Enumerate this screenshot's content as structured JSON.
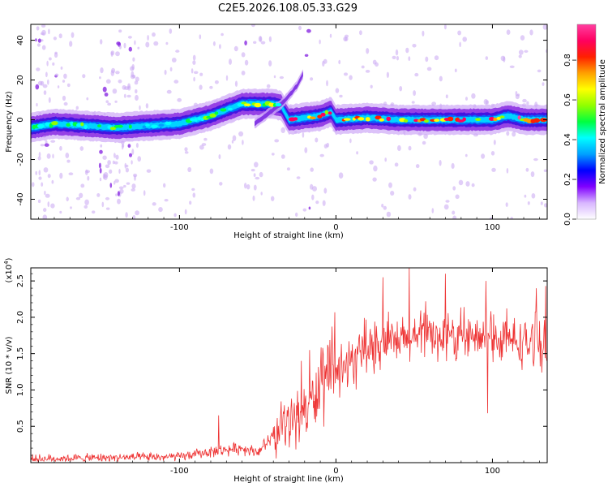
{
  "title": "C2E5.2026.108.05.33.G29",
  "chart_data": [
    {
      "type": "heatmap",
      "name": "spectrogram",
      "xlabel": "Height of straight line (km)",
      "ylabel": "Frequency (Hz)",
      "xlim": [
        -195,
        135
      ],
      "ylim": [
        -50,
        48
      ],
      "xticks": [
        -100,
        0,
        100
      ],
      "xtick_labels": [
        "-100",
        "0",
        "100"
      ],
      "yticks": [
        -40,
        -20,
        0,
        20,
        40
      ],
      "ytick_labels": [
        "-40",
        "-20",
        "0",
        "20",
        "40"
      ],
      "ridge": {
        "x": [
          -195,
          -180,
          -160,
          -140,
          -120,
          -100,
          -80,
          -60,
          -50,
          -40,
          -35,
          -30,
          -20,
          -10,
          -3,
          0,
          20,
          40,
          60,
          80,
          100,
          110,
          120,
          135
        ],
        "y": [
          -4,
          -2,
          -3,
          -4,
          -3,
          -2,
          2,
          8,
          8,
          8,
          7,
          0,
          1,
          2,
          4,
          0,
          1,
          0,
          0,
          0,
          0,
          2,
          0,
          0
        ]
      },
      "branch": {
        "x": [
          -52,
          -45,
          -40,
          -35,
          -30,
          -25,
          -21
        ],
        "y": [
          -2,
          2,
          5,
          8,
          12,
          17,
          23
        ]
      }
    },
    {
      "type": "colorbar",
      "name": "amplitude-scale",
      "label": "Normalized spectral amplitude",
      "ylim": [
        0,
        0.98
      ],
      "ticks": [
        0.0,
        0.2,
        0.4,
        0.6,
        0.8
      ],
      "tick_labels": [
        "0.0",
        "0.2",
        "0.4",
        "0.6",
        "0.8"
      ],
      "colors": [
        "#ffffff",
        "#d8b6ff",
        "#8000ff",
        "#0000ff",
        "#00a0ff",
        "#00ffff",
        "#00ff40",
        "#90ff00",
        "#ffff00",
        "#ffa000",
        "#ff2000",
        "#ff0060",
        "#ff3fa0"
      ]
    },
    {
      "type": "line",
      "name": "snr",
      "xlabel": "Height of straight line (km)",
      "ylabel": "SNR (10 * v/v)",
      "multiplier": "(x10",
      "multiplier_exp": "4",
      "xlim": [
        -195,
        135
      ],
      "ylim": [
        0,
        2.68
      ],
      "xticks": [
        -100,
        0,
        100
      ],
      "xtick_labels": [
        "-100",
        "0",
        "100"
      ],
      "yticks": [
        0.5,
        1.0,
        1.5,
        2.0,
        2.5
      ],
      "ytick_labels": [
        "0.5",
        "1.0",
        "1.5",
        "2.0",
        "2.5"
      ],
      "color": "#ee3333",
      "envelope": {
        "x": [
          -195,
          -140,
          -100,
          -80,
          -60,
          -50,
          -40,
          -30,
          -20,
          -15,
          -10,
          0,
          10,
          20,
          40,
          60,
          80,
          100,
          120,
          135
        ],
        "y": [
          0.05,
          0.07,
          0.08,
          0.15,
          0.2,
          0.15,
          0.35,
          0.55,
          0.75,
          0.85,
          1.0,
          1.25,
          1.35,
          1.55,
          1.65,
          1.75,
          1.7,
          1.7,
          1.65,
          1.6
        ]
      },
      "spikes": [
        {
          "x": -75,
          "y": 0.65
        },
        {
          "x": -22,
          "y": 1.4
        },
        {
          "x": -17,
          "y": 1.55
        },
        {
          "x": 30,
          "y": 2.55
        },
        {
          "x": 47,
          "y": 2.68
        },
        {
          "x": 70,
          "y": 2.6
        },
        {
          "x": 96,
          "y": 2.5
        },
        {
          "x": 97,
          "y": 0.68
        },
        {
          "x": 128,
          "y": 2.4
        },
        {
          "x": 134,
          "y": 2.43
        }
      ]
    }
  ]
}
